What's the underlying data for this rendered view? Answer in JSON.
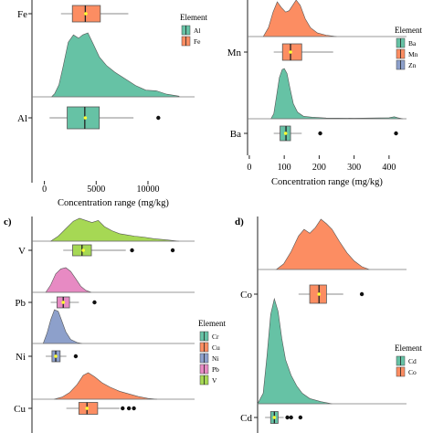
{
  "colors": {
    "Al": "#66c2a5",
    "Fe": "#fc8d62",
    "Ba": "#66c2a5",
    "Mn": "#fc8d62",
    "Zn": "#8da0cb",
    "Cr": "#66c2a5",
    "Cu": "#fc8d62",
    "Ni": "#8da0cb",
    "Pb": "#e78ac3",
    "V": "#a6d854",
    "Cd": "#66c2a5",
    "Co": "#fc8d62",
    "mean": "#ffff33"
  },
  "chart_data": [
    {
      "panel": "",
      "type": "raincloud",
      "xlabel": "Concentration range (mg/kg)",
      "xlim": [
        -1200,
        14500
      ],
      "xticks": [
        0,
        5000,
        10000
      ],
      "legend_title": "Element",
      "legend": [
        "Al",
        "Fe"
      ],
      "categories": [
        "Al",
        "Fe"
      ],
      "series": [
        {
          "name": "Al",
          "box": {
            "min": 500,
            "q1": 2200,
            "median": 3900,
            "q3": 5300,
            "max": 8600,
            "mean": 3950
          },
          "outliers": [
            11000
          ],
          "density": [
            [
              700,
              0
            ],
            [
              1000,
              0.05
            ],
            [
              1400,
              0.18
            ],
            [
              1800,
              0.45
            ],
            [
              2300,
              0.82
            ],
            [
              2800,
              0.93
            ],
            [
              3300,
              0.88
            ],
            [
              3700,
              0.93
            ],
            [
              4200,
              0.96
            ],
            [
              4700,
              0.8
            ],
            [
              5300,
              0.6
            ],
            [
              6000,
              0.47
            ],
            [
              6800,
              0.37
            ],
            [
              7800,
              0.27
            ],
            [
              8800,
              0.17
            ],
            [
              9800,
              0.1
            ],
            [
              10800,
              0.09
            ],
            [
              11800,
              0.04
            ],
            [
              13000,
              0.01
            ]
          ]
        },
        {
          "name": "Fe",
          "box": {
            "min": 1600,
            "q1": 2700,
            "median": 3950,
            "q3": 5400,
            "max": 8100,
            "mean": 4000
          },
          "outliers": [],
          "density": []
        }
      ]
    },
    {
      "panel": "",
      "type": "raincloud",
      "xlabel": "Concentration range (mg/kg)",
      "xlim": [
        -5,
        450
      ],
      "xticks": [
        0,
        100,
        200,
        300,
        400
      ],
      "legend_title": "Element",
      "legend": [
        "Ba",
        "Mn",
        "Zn"
      ],
      "categories": [
        "Ba",
        "Mn"
      ],
      "series": [
        {
          "name": "Ba",
          "box": {
            "min": 70,
            "q1": 88,
            "median": 105,
            "q3": 118,
            "max": 150,
            "mean": 104
          },
          "outliers": [
            203,
            420
          ],
          "density": [
            [
              62,
              0
            ],
            [
              70,
              0.1
            ],
            [
              78,
              0.45
            ],
            [
              86,
              0.82
            ],
            [
              94,
              0.98
            ],
            [
              100,
              1.0
            ],
            [
              108,
              0.9
            ],
            [
              116,
              0.62
            ],
            [
              126,
              0.3
            ],
            [
              138,
              0.13
            ],
            [
              155,
              0.05
            ],
            [
              180,
              0.03
            ],
            [
              220,
              0.015
            ],
            [
              300,
              0.01
            ],
            [
              400,
              0.02
            ],
            [
              415,
              0.04
            ],
            [
              425,
              0.02
            ],
            [
              440,
              0
            ]
          ]
        },
        {
          "name": "Mn",
          "box": {
            "min": 70,
            "q1": 95,
            "median": 118,
            "q3": 150,
            "max": 240,
            "mean": 118
          },
          "outliers": [],
          "density": [
            [
              40,
              0
            ],
            [
              55,
              0.2
            ],
            [
              68,
              0.55
            ],
            [
              80,
              0.78
            ],
            [
              92,
              0.65
            ],
            [
              104,
              0.55
            ],
            [
              114,
              0.58
            ],
            [
              124,
              0.7
            ],
            [
              134,
              0.82
            ],
            [
              146,
              0.7
            ],
            [
              160,
              0.4
            ],
            [
              175,
              0.2
            ],
            [
              195,
              0.08
            ],
            [
              220,
              0.03
            ],
            [
              250,
              0
            ]
          ]
        }
      ]
    },
    {
      "panel": "c)",
      "type": "raincloud",
      "xlabel": "",
      "xlim": [
        0,
        260
      ],
      "xticks": [],
      "legend_title": "Element",
      "legend": [
        "Cr",
        "Cu",
        "Ni",
        "Pb",
        "V"
      ],
      "categories": [
        "Cu",
        "Ni",
        "Pb",
        "V"
      ],
      "series": [
        {
          "name": "Cu",
          "box": {
            "min": 55,
            "q1": 75,
            "median": 88,
            "q3": 105,
            "max": 140,
            "mean": 88
          },
          "outliers": [
            145,
            155,
            163
          ],
          "density": [
            [
              35,
              0
            ],
            [
              48,
              0.08
            ],
            [
              60,
              0.25
            ],
            [
              72,
              0.55
            ],
            [
              82,
              0.9
            ],
            [
              90,
              1.0
            ],
            [
              100,
              0.85
            ],
            [
              112,
              0.62
            ],
            [
              125,
              0.45
            ],
            [
              140,
              0.3
            ],
            [
              155,
              0.2
            ],
            [
              170,
              0.1
            ],
            [
              185,
              0.03
            ],
            [
              200,
              0
            ]
          ]
        },
        {
          "name": "Ni",
          "box": {
            "min": 22,
            "q1": 32,
            "median": 38,
            "q3": 45,
            "max": 55,
            "mean": 38
          },
          "outliers": [
            70
          ],
          "density": [
            [
              18,
              0
            ],
            [
              24,
              0.3
            ],
            [
              30,
              0.7
            ],
            [
              36,
              1.0
            ],
            [
              42,
              0.95
            ],
            [
              48,
              0.65
            ],
            [
              54,
              0.35
            ],
            [
              62,
              0.12
            ],
            [
              72,
              0.03
            ],
            [
              80,
              0
            ]
          ]
        },
        {
          "name": "Pb",
          "box": {
            "min": 30,
            "q1": 40,
            "median": 50,
            "q3": 60,
            "max": 75,
            "mean": 50
          },
          "outliers": [
            100
          ],
          "density": [
            [
              22,
              0
            ],
            [
              30,
              0.3
            ],
            [
              38,
              0.75
            ],
            [
              46,
              0.95
            ],
            [
              54,
              1.0
            ],
            [
              62,
              0.85
            ],
            [
              70,
              0.55
            ],
            [
              78,
              0.25
            ],
            [
              86,
              0.08
            ],
            [
              95,
              0
            ]
          ]
        },
        {
          "name": "V",
          "box": {
            "min": 50,
            "q1": 65,
            "median": 80,
            "q3": 95,
            "max": 150,
            "mean": 82
          },
          "outliers": [
            160,
            225
          ],
          "density": [
            [
              30,
              0
            ],
            [
              42,
              0.12
            ],
            [
              54,
              0.3
            ],
            [
              66,
              0.48
            ],
            [
              76,
              0.55
            ],
            [
              86,
              0.5
            ],
            [
              96,
              0.45
            ],
            [
              106,
              0.5
            ],
            [
              116,
              0.35
            ],
            [
              128,
              0.25
            ],
            [
              140,
              0.18
            ],
            [
              152,
              0.15
            ],
            [
              164,
              0.12
            ],
            [
              178,
              0.1
            ],
            [
              195,
              0.06
            ],
            [
              215,
              0.03
            ],
            [
              235,
              0
            ]
          ]
        }
      ]
    },
    {
      "panel": "d)",
      "type": "raincloud",
      "xlabel": "",
      "xlim": [
        0,
        40
      ],
      "xticks": [],
      "legend_title": "Element",
      "legend": [
        "Cd",
        "Co"
      ],
      "categories": [
        "Cd",
        "Co"
      ],
      "series": [
        {
          "name": "Cd",
          "box": {
            "min": 2,
            "q1": 3.5,
            "median": 4.5,
            "q3": 5.5,
            "max": 7,
            "mean": 4.5
          },
          "outliers": [
            8,
            9,
            11.5
          ],
          "density": [
            [
              0,
              0
            ],
            [
              1.5,
              0.1
            ],
            [
              2.5,
              0.45
            ],
            [
              3.5,
              0.85
            ],
            [
              4.5,
              1.0
            ],
            [
              5.5,
              0.88
            ],
            [
              6.5,
              0.62
            ],
            [
              7.5,
              0.42
            ],
            [
              9,
              0.27
            ],
            [
              10.5,
              0.17
            ],
            [
              12,
              0.1
            ],
            [
              14,
              0.05
            ],
            [
              17,
              0.02
            ],
            [
              20,
              0
            ]
          ]
        },
        {
          "name": "Co",
          "box": {
            "min": 11,
            "q1": 14,
            "median": 16.5,
            "q3": 18.5,
            "max": 23,
            "mean": 16.5
          },
          "outliers": [
            28
          ],
          "density": [
            [
              5,
              0
            ],
            [
              7,
              0.1
            ],
            [
              9,
              0.32
            ],
            [
              11,
              0.6
            ],
            [
              12.5,
              0.72
            ],
            [
              14,
              0.65
            ],
            [
              15.5,
              0.75
            ],
            [
              17,
              0.9
            ],
            [
              18.5,
              0.82
            ],
            [
              20,
              0.72
            ],
            [
              22,
              0.5
            ],
            [
              24,
              0.3
            ],
            [
              26,
              0.15
            ],
            [
              28,
              0.05
            ],
            [
              30,
              0
            ]
          ]
        }
      ]
    }
  ]
}
